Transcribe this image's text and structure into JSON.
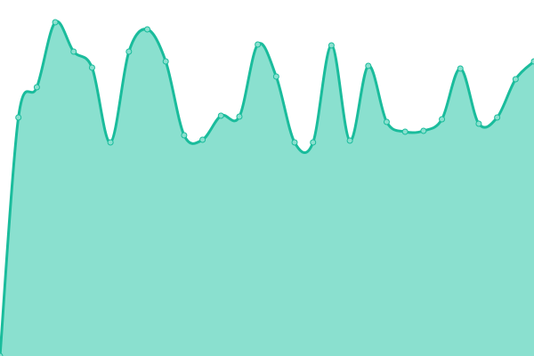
{
  "chart_data": {
    "type": "area",
    "title": "",
    "xlabel": "",
    "ylabel": "",
    "x": [
      0,
      1,
      2,
      3,
      4,
      5,
      6,
      7,
      8,
      9,
      10,
      11,
      12,
      13,
      14,
      15,
      16,
      17,
      18,
      19,
      20,
      21,
      22,
      23,
      24,
      25,
      26,
      27,
      28,
      29
    ],
    "values": [
      0,
      268,
      302,
      375,
      342,
      324,
      240,
      342,
      367,
      331,
      248,
      243,
      270,
      269,
      350,
      314,
      240,
      240,
      349,
      242,
      326,
      263,
      252,
      253,
      266,
      323,
      261,
      268,
      311,
      331
    ],
    "ylim": [
      0,
      400
    ],
    "grid": false,
    "axes_visible": false,
    "legend": "none",
    "markers": true,
    "colors": {
      "line": "#1abc9c",
      "fill": "#8ae0cf",
      "marker_fill": "#8ae0cf"
    }
  }
}
